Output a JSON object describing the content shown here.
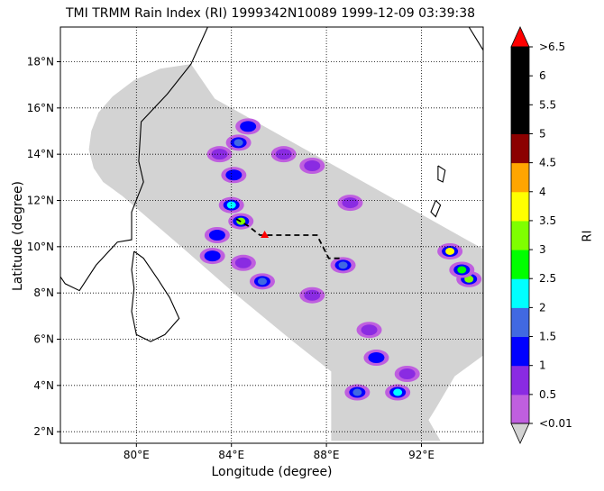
{
  "chart_data": {
    "type": "heatmap",
    "title": "TMI TRMM Rain Index (RI) 1999342N10089 1999-12-09 03:39:38",
    "xlabel": "Longitude (degree)",
    "ylabel": "Latitude (degree)",
    "xlim": [
      76.8,
      94.6
    ],
    "ylim": [
      1.5,
      19.5
    ],
    "x_ticks": [
      {
        "value": 80,
        "label": "80°E"
      },
      {
        "value": 84,
        "label": "84°E"
      },
      {
        "value": 88,
        "label": "88°E"
      },
      {
        "value": 92,
        "label": "92°E"
      }
    ],
    "y_ticks": [
      {
        "value": 2,
        "label": "2°N"
      },
      {
        "value": 4,
        "label": "4°N"
      },
      {
        "value": 6,
        "label": "6°N"
      },
      {
        "value": 8,
        "label": "8°N"
      },
      {
        "value": 10,
        "label": "10°N"
      },
      {
        "value": 12,
        "label": "12°N"
      },
      {
        "value": 14,
        "label": "14°N"
      },
      {
        "value": 16,
        "label": "16°N"
      },
      {
        "value": 18,
        "label": "18°N"
      }
    ],
    "grid": true,
    "colorbar": {
      "label": "RI",
      "tick_labels": [
        "<0.01",
        "0.5",
        "1",
        "1.5",
        "2",
        "2.5",
        "3",
        "3.5",
        "4",
        "4.5",
        "5",
        "5.5",
        "6",
        ">6.5"
      ],
      "colors": [
        "#bf5fdf",
        "#8a2be2",
        "#0000ff",
        "#4169e1",
        "#00ffff",
        "#00ff00",
        "#7fff00",
        "#ffff00",
        "#ffa500",
        "#8b0000",
        "#000000",
        "#000000",
        "#000000"
      ],
      "under_color": "#d3d3d3",
      "over_color": "#ff0000"
    },
    "swath_color": "#d3d3d3",
    "storm_track": [
      [
        84.2,
        11.2
      ],
      [
        84.7,
        10.9
      ],
      [
        85.2,
        10.5
      ],
      [
        86.0,
        10.5
      ],
      [
        86.8,
        10.5
      ],
      [
        87.6,
        10.5
      ],
      [
        88.1,
        9.5
      ],
      [
        88.6,
        9.5
      ]
    ],
    "storm_center": [
      85.4,
      10.5
    ],
    "rain_cells": [
      {
        "lon": 83.5,
        "lat": 14.0,
        "ri": 0.5
      },
      {
        "lon": 84.3,
        "lat": 14.5,
        "ri": 1.5
      },
      {
        "lon": 84.7,
        "lat": 15.2,
        "ri": 1
      },
      {
        "lon": 84.1,
        "lat": 13.1,
        "ri": 1
      },
      {
        "lon": 84.0,
        "lat": 11.8,
        "ri": 2
      },
      {
        "lon": 84.4,
        "lat": 11.1,
        "ri": 3
      },
      {
        "lon": 83.4,
        "lat": 10.5,
        "ri": 1
      },
      {
        "lon": 83.2,
        "lat": 9.6,
        "ri": 1
      },
      {
        "lon": 84.5,
        "lat": 9.3,
        "ri": 0.5
      },
      {
        "lon": 85.3,
        "lat": 8.5,
        "ri": 1.5
      },
      {
        "lon": 86.2,
        "lat": 14.0,
        "ri": 0.5
      },
      {
        "lon": 87.4,
        "lat": 13.5,
        "ri": 0.5
      },
      {
        "lon": 89.0,
        "lat": 11.9,
        "ri": 0.5
      },
      {
        "lon": 88.7,
        "lat": 9.2,
        "ri": 1.5
      },
      {
        "lon": 87.4,
        "lat": 7.9,
        "ri": 0.5
      },
      {
        "lon": 89.8,
        "lat": 6.4,
        "ri": 0.5
      },
      {
        "lon": 90.1,
        "lat": 5.2,
        "ri": 1
      },
      {
        "lon": 91.4,
        "lat": 4.5,
        "ri": 0.5
      },
      {
        "lon": 91.0,
        "lat": 3.7,
        "ri": 2
      },
      {
        "lon": 89.3,
        "lat": 3.7,
        "ri": 1.5
      },
      {
        "lon": 93.2,
        "lat": 9.8,
        "ri": 3.5
      },
      {
        "lon": 94.0,
        "lat": 8.6,
        "ri": 3
      },
      {
        "lon": 93.7,
        "lat": 9.0,
        "ri": 2.5
      }
    ]
  }
}
